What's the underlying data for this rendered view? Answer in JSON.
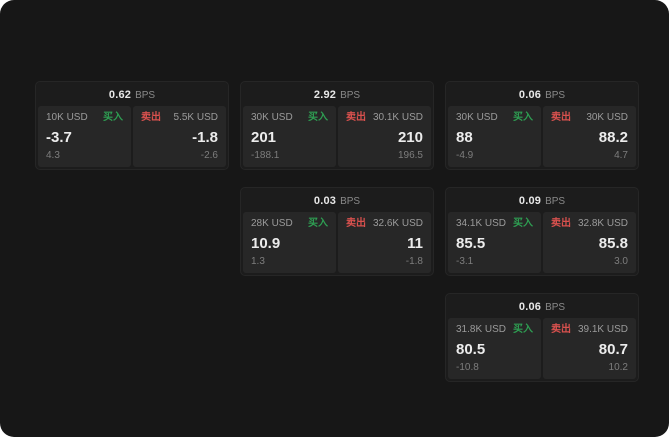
{
  "window": {
    "background": "#171717"
  },
  "labels": {
    "bps": "BPS",
    "buy": "买入",
    "sell": "卖出"
  },
  "colors": {
    "buy": "#2e9e52",
    "sell": "#d9514e",
    "price_text": "#ececec",
    "muted_text": "#8a8a8a",
    "panel_bg": "#272727",
    "card_bg": "#1c1c1c"
  },
  "cards": [
    {
      "row": 1,
      "col": 1,
      "bps": "0.62",
      "buy": {
        "amount": "10K USD",
        "price": "-3.7",
        "delta": "4.3"
      },
      "sell": {
        "amount": "5.5K USD",
        "price": "-1.8",
        "delta": "-2.6"
      }
    },
    {
      "row": 1,
      "col": 2,
      "bps": "2.92",
      "buy": {
        "amount": "30K USD",
        "price": "201",
        "delta": "-188.1"
      },
      "sell": {
        "amount": "30.1K USD",
        "price": "210",
        "delta": "196.5"
      }
    },
    {
      "row": 1,
      "col": 3,
      "bps": "0.06",
      "buy": {
        "amount": "30K USD",
        "price": "88",
        "delta": "-4.9"
      },
      "sell": {
        "amount": "30K USD",
        "price": "88.2",
        "delta": "4.7"
      }
    },
    {
      "row": 2,
      "col": 2,
      "bps": "0.03",
      "buy": {
        "amount": "28K USD",
        "price": "10.9",
        "delta": "1.3"
      },
      "sell": {
        "amount": "32.6K USD",
        "price": "11",
        "delta": "-1.8"
      }
    },
    {
      "row": 2,
      "col": 3,
      "bps": "0.09",
      "buy": {
        "amount": "34.1K USD",
        "price": "85.5",
        "delta": "-3.1"
      },
      "sell": {
        "amount": "32.8K USD",
        "price": "85.8",
        "delta": "3.0"
      }
    },
    {
      "row": 3,
      "col": 3,
      "bps": "0.06",
      "buy": {
        "amount": "31.8K USD",
        "price": "80.5",
        "delta": "-10.8"
      },
      "sell": {
        "amount": "39.1K USD",
        "price": "80.7",
        "delta": "10.2"
      }
    }
  ]
}
